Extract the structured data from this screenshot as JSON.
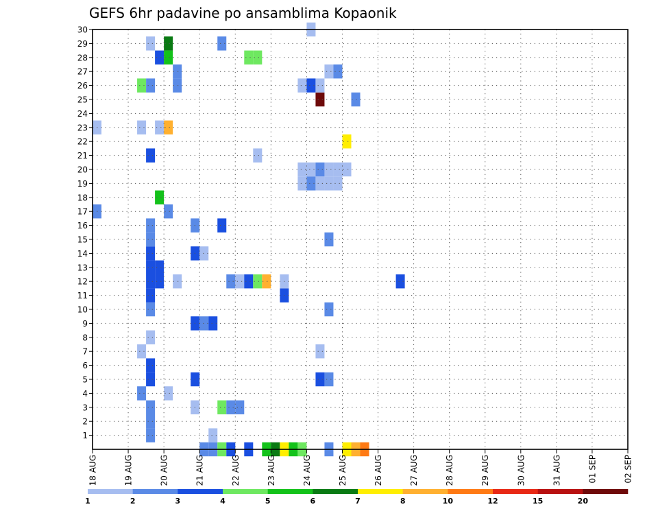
{
  "chart_data": {
    "type": "heatmap",
    "title": "GEFS 6hr padavine po ansamblima Kopaonik",
    "xlabel": "",
    "ylabel": "",
    "x_tick_labels": [
      "18 AUG",
      "19 AUG",
      "20 AUG",
      "21 AUG",
      "22 AUG",
      "23 AUG",
      "24 AUG",
      "25 AUG",
      "26 AUG",
      "27 AUG",
      "28 AUG",
      "29 AUG",
      "30 AUG",
      "31 AUG",
      "01 SEP",
      "02 SEP"
    ],
    "x_range_days": [
      0,
      15
    ],
    "time_step_hours": 6,
    "y_range": [
      0,
      30
    ],
    "y_ticks": [
      1,
      2,
      3,
      4,
      5,
      6,
      7,
      8,
      9,
      10,
      11,
      12,
      13,
      14,
      15,
      16,
      17,
      18,
      19,
      20,
      21,
      22,
      23,
      24,
      25,
      26,
      27,
      28,
      29,
      30
    ],
    "grid": true,
    "colorbar": {
      "placement": "bottom",
      "labels": [
        "1",
        "2",
        "3",
        "4",
        "5",
        "6",
        "7",
        "8",
        "10",
        "12",
        "15",
        "20"
      ],
      "colors": [
        "#a6bdf0",
        "#5a8ae6",
        "#1a4fe0",
        "#6ee860",
        "#13c21a",
        "#0a7a13",
        "#ffee00",
        "#ffb030",
        "#ff7a14",
        "#e82814",
        "#b81010",
        "#6e0a0a"
      ]
    },
    "cells": [
      [
        0,
        12,
        1
      ],
      [
        0,
        13,
        1
      ],
      [
        0,
        14,
        3
      ],
      [
        0,
        15,
        2
      ],
      [
        0,
        17,
        2
      ],
      [
        0,
        19,
        4
      ],
      [
        0,
        20,
        5
      ],
      [
        0,
        21,
        6
      ],
      [
        0,
        22,
        4
      ],
      [
        0,
        23,
        3
      ],
      [
        0,
        28,
        6
      ],
      [
        0,
        29,
        7
      ],
      [
        0,
        30,
        8
      ],
      [
        1,
        6,
        1
      ],
      [
        1,
        13,
        0
      ],
      [
        2,
        6,
        1
      ],
      [
        3,
        6,
        1
      ],
      [
        3,
        11,
        0
      ],
      [
        3,
        14,
        3
      ],
      [
        3,
        15,
        1
      ],
      [
        3,
        16,
        1
      ],
      [
        4,
        5,
        1
      ],
      [
        4,
        8,
        0
      ],
      [
        5,
        6,
        2
      ],
      [
        5,
        11,
        2
      ],
      [
        5,
        25,
        2
      ],
      [
        5,
        26,
        1
      ],
      [
        6,
        6,
        2
      ],
      [
        7,
        5,
        0
      ],
      [
        7,
        25,
        0
      ],
      [
        8,
        6,
        0
      ],
      [
        9,
        11,
        2
      ],
      [
        9,
        12,
        1
      ],
      [
        9,
        13,
        2
      ],
      [
        10,
        6,
        1
      ],
      [
        10,
        26,
        1
      ],
      [
        11,
        6,
        2
      ],
      [
        11,
        21,
        2
      ],
      [
        12,
        6,
        2
      ],
      [
        12,
        7,
        2
      ],
      [
        12,
        9,
        0
      ],
      [
        12,
        15,
        1
      ],
      [
        12,
        16,
        0
      ],
      [
        12,
        17,
        2
      ],
      [
        12,
        18,
        3
      ],
      [
        12,
        19,
        7
      ],
      [
        12,
        21,
        0
      ],
      [
        12,
        34,
        2
      ],
      [
        13,
        6,
        2
      ],
      [
        13,
        7,
        2
      ],
      [
        14,
        6,
        2
      ],
      [
        14,
        11,
        2
      ],
      [
        14,
        12,
        0
      ],
      [
        15,
        6,
        1
      ],
      [
        15,
        26,
        1
      ],
      [
        16,
        6,
        1
      ],
      [
        16,
        11,
        1
      ],
      [
        16,
        14,
        2
      ],
      [
        17,
        0,
        1
      ],
      [
        17,
        8,
        1
      ],
      [
        18,
        7,
        4
      ],
      [
        19,
        23,
        0
      ],
      [
        19,
        24,
        1
      ],
      [
        19,
        25,
        0
      ],
      [
        19,
        26,
        0
      ],
      [
        19,
        27,
        0
      ],
      [
        20,
        23,
        0
      ],
      [
        20,
        24,
        0
      ],
      [
        20,
        25,
        1
      ],
      [
        20,
        26,
        0
      ],
      [
        20,
        27,
        0
      ],
      [
        20,
        28,
        0
      ],
      [
        21,
        6,
        2
      ],
      [
        21,
        18,
        0
      ],
      [
        22,
        28,
        6
      ],
      [
        23,
        0,
        0
      ],
      [
        23,
        5,
        0
      ],
      [
        23,
        7,
        0
      ],
      [
        23,
        8,
        7
      ],
      [
        25,
        25,
        11
      ],
      [
        25,
        29,
        1
      ],
      [
        26,
        5,
        3
      ],
      [
        26,
        6,
        1
      ],
      [
        26,
        9,
        1
      ],
      [
        26,
        23,
        0
      ],
      [
        26,
        24,
        2
      ],
      [
        26,
        25,
        0
      ],
      [
        27,
        9,
        1
      ],
      [
        27,
        26,
        0
      ],
      [
        27,
        27,
        1
      ],
      [
        28,
        7,
        2
      ],
      [
        28,
        8,
        4
      ],
      [
        28,
        17,
        3
      ],
      [
        28,
        18,
        3
      ],
      [
        29,
        6,
        0
      ],
      [
        29,
        8,
        5
      ],
      [
        29,
        14,
        1
      ],
      [
        30,
        24,
        0
      ]
    ],
    "cell_extra": [
      [
        0,
        26,
        1
      ]
    ]
  }
}
